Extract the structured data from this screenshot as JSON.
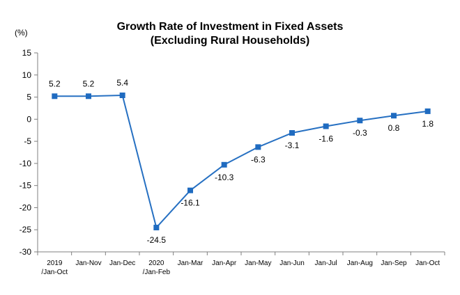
{
  "chart_data": {
    "type": "line",
    "title": [
      "Growth Rate of Investment in Fixed Assets",
      "(Excluding Rural Households)"
    ],
    "ylabel": "(%)",
    "xlabel": "",
    "ylim": [
      -30,
      15
    ],
    "yticks": [
      15,
      10,
      5,
      0,
      -5,
      -10,
      -15,
      -20,
      -25,
      -30
    ],
    "grid": false,
    "legend": "none",
    "categories": [
      [
        "2019",
        "/Jan-Oct"
      ],
      [
        "Jan-Nov"
      ],
      [
        "Jan-Dec"
      ],
      [
        "2020",
        "/Jan-Feb"
      ],
      [
        "Jan-Mar"
      ],
      [
        "Jan-Apr"
      ],
      [
        "Jan-May"
      ],
      [
        "Jan-Jun"
      ],
      [
        "Jan-Jul"
      ],
      [
        "Jan-Aug"
      ],
      [
        "Jan-Sep"
      ],
      [
        "Jan-Oct"
      ]
    ],
    "values": [
      5.2,
      5.2,
      5.4,
      -24.5,
      -16.1,
      -10.3,
      -6.3,
      -3.1,
      -1.6,
      -0.3,
      0.8,
      1.8
    ],
    "data_labels": [
      "5.2",
      "5.2",
      "5.4",
      "-24.5",
      "-16.1",
      "-10.3",
      "-6.3",
      "-3.1",
      "-1.6",
      "-0.3",
      "0.8",
      "1.8"
    ],
    "label_positions": [
      "above",
      "above",
      "above",
      "below",
      "below",
      "below",
      "below",
      "below",
      "below",
      "below",
      "below",
      "below"
    ],
    "colors": {
      "line": "#2670c2",
      "marker": "#1f6bc0",
      "axis": "#7f7f7f"
    }
  }
}
